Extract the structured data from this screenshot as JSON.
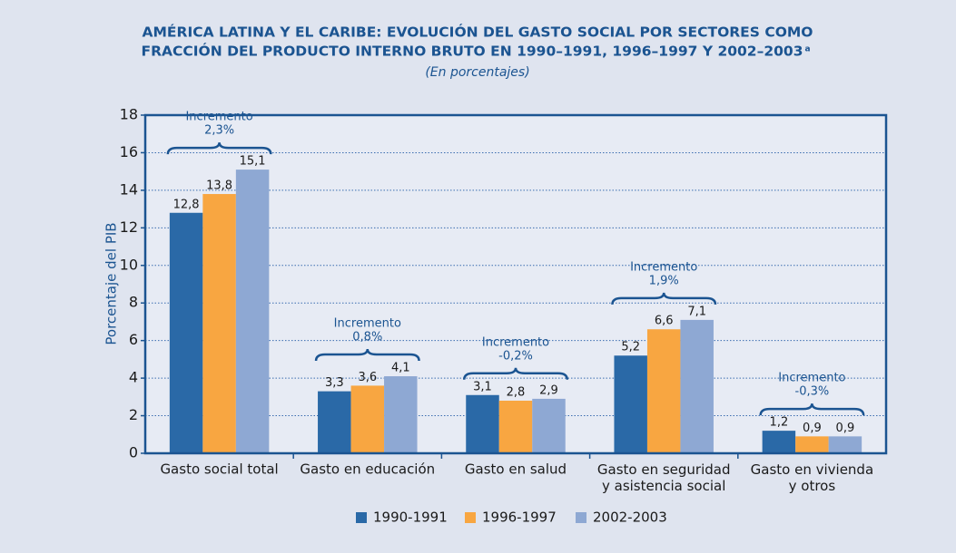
{
  "chart_data": {
    "type": "bar",
    "title": [
      "AMÉRICA LATINA Y EL CARIBE: EVOLUCIÓN DEL GASTO SOCIAL POR SECTORES COMO",
      "FRACCIÓN DEL PRODUCTO INTERNO BRUTO EN 1990–1991, 1996–1997 Y 2002–2003"
    ],
    "title_note": "a",
    "subtitle": "(En porcentajes)",
    "ylabel": "Porcentaje del PIB",
    "categories": [
      "Gasto social total",
      "Gasto en educación",
      "Gasto en salud",
      "Gasto en seguridad\ny asistencia social",
      "Gasto en vivienda\ny otros"
    ],
    "series": [
      {
        "name": "1990-1991",
        "color": "#2a69a7",
        "values": [
          12.8,
          3.3,
          3.1,
          5.2,
          1.2
        ],
        "value_labels": [
          "12,8",
          "3,3",
          "3,1",
          "5,2",
          "1,2"
        ]
      },
      {
        "name": "1996-1997",
        "color": "#f8a641",
        "values": [
          13.8,
          3.6,
          2.8,
          6.6,
          0.9
        ],
        "value_labels": [
          "13,8",
          "3,6",
          "2,8",
          "6,6",
          "0,9"
        ]
      },
      {
        "name": "2002-2003",
        "color": "#8ea8d3",
        "values": [
          15.1,
          4.1,
          2.9,
          7.1,
          0.9
        ],
        "value_labels": [
          "15,1",
          "4,1",
          "2,9",
          "7,1",
          "0,9"
        ]
      }
    ],
    "annotations": [
      {
        "text": "Incremento",
        "value": "2,3%"
      },
      {
        "text": "Incremento",
        "value": "0,8%"
      },
      {
        "text": "Incremento",
        "value": "-0,2%"
      },
      {
        "text": "Incremento",
        "value": "1,9%"
      },
      {
        "text": "Incremento",
        "value": "-0,3%"
      }
    ],
    "ylim": [
      0,
      18
    ],
    "yticks": [
      0,
      2,
      4,
      6,
      8,
      10,
      12,
      14,
      16,
      18
    ],
    "grid": true,
    "legend": "bottom"
  }
}
